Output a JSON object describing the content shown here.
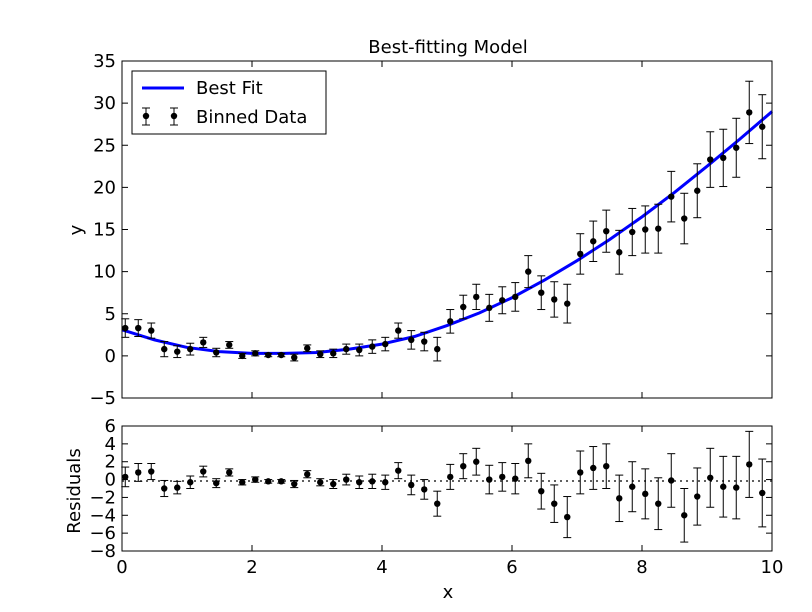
{
  "colors": {
    "fit": "#0000ff",
    "data": "#000000",
    "background": "#ffffff"
  },
  "chart_data": [
    {
      "type": "scatter",
      "title": "Best-fitting Model",
      "xlabel": "",
      "ylabel": "y",
      "xlim": [
        0,
        10
      ],
      "ylim": [
        -5,
        35
      ],
      "yticks": [
        -5,
        0,
        5,
        10,
        15,
        20,
        25,
        30,
        35
      ],
      "xticks": [
        0,
        2,
        4,
        6,
        8,
        10
      ],
      "show_xtick_labels": false,
      "grid": false,
      "legend": {
        "position": "top-left",
        "entries": [
          "Best Fit",
          "Binned Data"
        ]
      },
      "fit": {
        "name": "Best Fit",
        "x": [
          0,
          0.5,
          1,
          1.5,
          2,
          2.5,
          3,
          3.5,
          4,
          4.5,
          5,
          5.5,
          6,
          6.5,
          7,
          7.5,
          8,
          8.5,
          9,
          9.5,
          10
        ],
        "y": [
          3.1,
          1.9,
          1.0,
          0.5,
          0.3,
          0.3,
          0.4,
          0.8,
          1.4,
          2.3,
          3.6,
          5.1,
          6.9,
          9.0,
          11.3,
          13.8,
          16.5,
          19.4,
          22.5,
          25.7,
          29.0
        ]
      },
      "binned_data": {
        "name": "Binned Data",
        "x": [
          0.05,
          0.25,
          0.45,
          0.65,
          0.85,
          1.05,
          1.25,
          1.45,
          1.65,
          1.85,
          2.05,
          2.25,
          2.45,
          2.65,
          2.85,
          3.05,
          3.25,
          3.45,
          3.65,
          3.85,
          4.05,
          4.25,
          4.45,
          4.65,
          4.85,
          5.05,
          5.25,
          5.45,
          5.65,
          5.85,
          6.05,
          6.25,
          6.45,
          6.65,
          6.85,
          7.05,
          7.25,
          7.45,
          7.65,
          7.85,
          8.05,
          8.25,
          8.45,
          8.65,
          8.85,
          9.05,
          9.25,
          9.45,
          9.65,
          9.85
        ],
        "y": [
          3.3,
          3.3,
          3.0,
          0.8,
          0.5,
          0.8,
          1.6,
          0.4,
          1.3,
          0.0,
          0.3,
          0.1,
          0.1,
          -0.2,
          0.9,
          0.2,
          0.3,
          0.8,
          0.7,
          1.1,
          1.4,
          3.0,
          1.9,
          1.7,
          0.8,
          4.1,
          5.8,
          7.0,
          5.7,
          6.6,
          7.0,
          10.0,
          7.5,
          6.7,
          6.2,
          12.1,
          13.6,
          14.8,
          12.3,
          14.7,
          15.0,
          15.1,
          18.9,
          16.3,
          19.6,
          23.3,
          23.5,
          24.7,
          28.9,
          27.2
        ],
        "yerr": [
          1.1,
          1.0,
          0.9,
          0.9,
          0.7,
          0.7,
          0.6,
          0.5,
          0.4,
          0.3,
          0.3,
          0.2,
          0.2,
          0.4,
          0.4,
          0.4,
          0.5,
          0.6,
          0.7,
          0.8,
          0.8,
          0.9,
          1.1,
          1.1,
          1.4,
          1.4,
          1.4,
          1.5,
          1.6,
          1.6,
          1.7,
          1.9,
          2.0,
          2.1,
          2.3,
          2.4,
          2.4,
          2.5,
          2.6,
          2.8,
          2.8,
          2.9,
          3.0,
          3.0,
          3.2,
          3.3,
          3.4,
          3.5,
          3.7,
          3.8
        ]
      }
    },
    {
      "type": "scatter",
      "title": "",
      "xlabel": "x",
      "ylabel": "Residuals",
      "xlim": [
        0,
        10
      ],
      "ylim": [
        -8,
        6
      ],
      "yticks": [
        -8,
        -6,
        -4,
        -2,
        0,
        2,
        4,
        6
      ],
      "xticks": [
        0,
        2,
        4,
        6,
        8,
        10
      ],
      "show_xtick_labels": true,
      "grid": false,
      "zero_line": "dotted",
      "residuals": {
        "name": "Residuals",
        "x": [
          0.05,
          0.25,
          0.45,
          0.65,
          0.85,
          1.05,
          1.25,
          1.45,
          1.65,
          1.85,
          2.05,
          2.25,
          2.45,
          2.65,
          2.85,
          3.05,
          3.25,
          3.45,
          3.65,
          3.85,
          4.05,
          4.25,
          4.45,
          4.65,
          4.85,
          5.05,
          5.25,
          5.45,
          5.65,
          5.85,
          6.05,
          6.25,
          6.45,
          6.65,
          6.85,
          7.05,
          7.25,
          7.45,
          7.65,
          7.85,
          8.05,
          8.25,
          8.45,
          8.65,
          8.85,
          9.05,
          9.25,
          9.45,
          9.65,
          9.85
        ],
        "y": [
          0.3,
          0.8,
          0.9,
          -1.0,
          -0.9,
          -0.3,
          0.9,
          -0.4,
          0.8,
          -0.3,
          0.0,
          -0.2,
          -0.2,
          -0.5,
          0.6,
          -0.3,
          -0.5,
          0.0,
          -0.3,
          -0.2,
          -0.3,
          1.0,
          -0.6,
          -1.1,
          -2.7,
          0.3,
          1.5,
          2.0,
          0.0,
          0.3,
          0.1,
          2.1,
          -1.3,
          -2.7,
          -4.2,
          0.8,
          1.3,
          1.5,
          -2.1,
          -0.8,
          -1.6,
          -2.7,
          -0.1,
          -4.0,
          -1.9,
          0.2,
          -0.8,
          -0.9,
          1.7,
          -1.5
        ],
        "yerr": [
          1.1,
          1.0,
          0.9,
          0.9,
          0.7,
          0.7,
          0.6,
          0.5,
          0.4,
          0.3,
          0.3,
          0.2,
          0.2,
          0.4,
          0.4,
          0.4,
          0.5,
          0.6,
          0.7,
          0.8,
          0.8,
          0.9,
          1.1,
          1.1,
          1.4,
          1.4,
          1.4,
          1.5,
          1.6,
          1.6,
          1.7,
          1.9,
          2.0,
          2.1,
          2.3,
          2.4,
          2.4,
          2.5,
          2.6,
          2.8,
          2.8,
          2.9,
          3.0,
          3.0,
          3.2,
          3.3,
          3.4,
          3.5,
          3.7,
          3.8
        ]
      }
    }
  ]
}
